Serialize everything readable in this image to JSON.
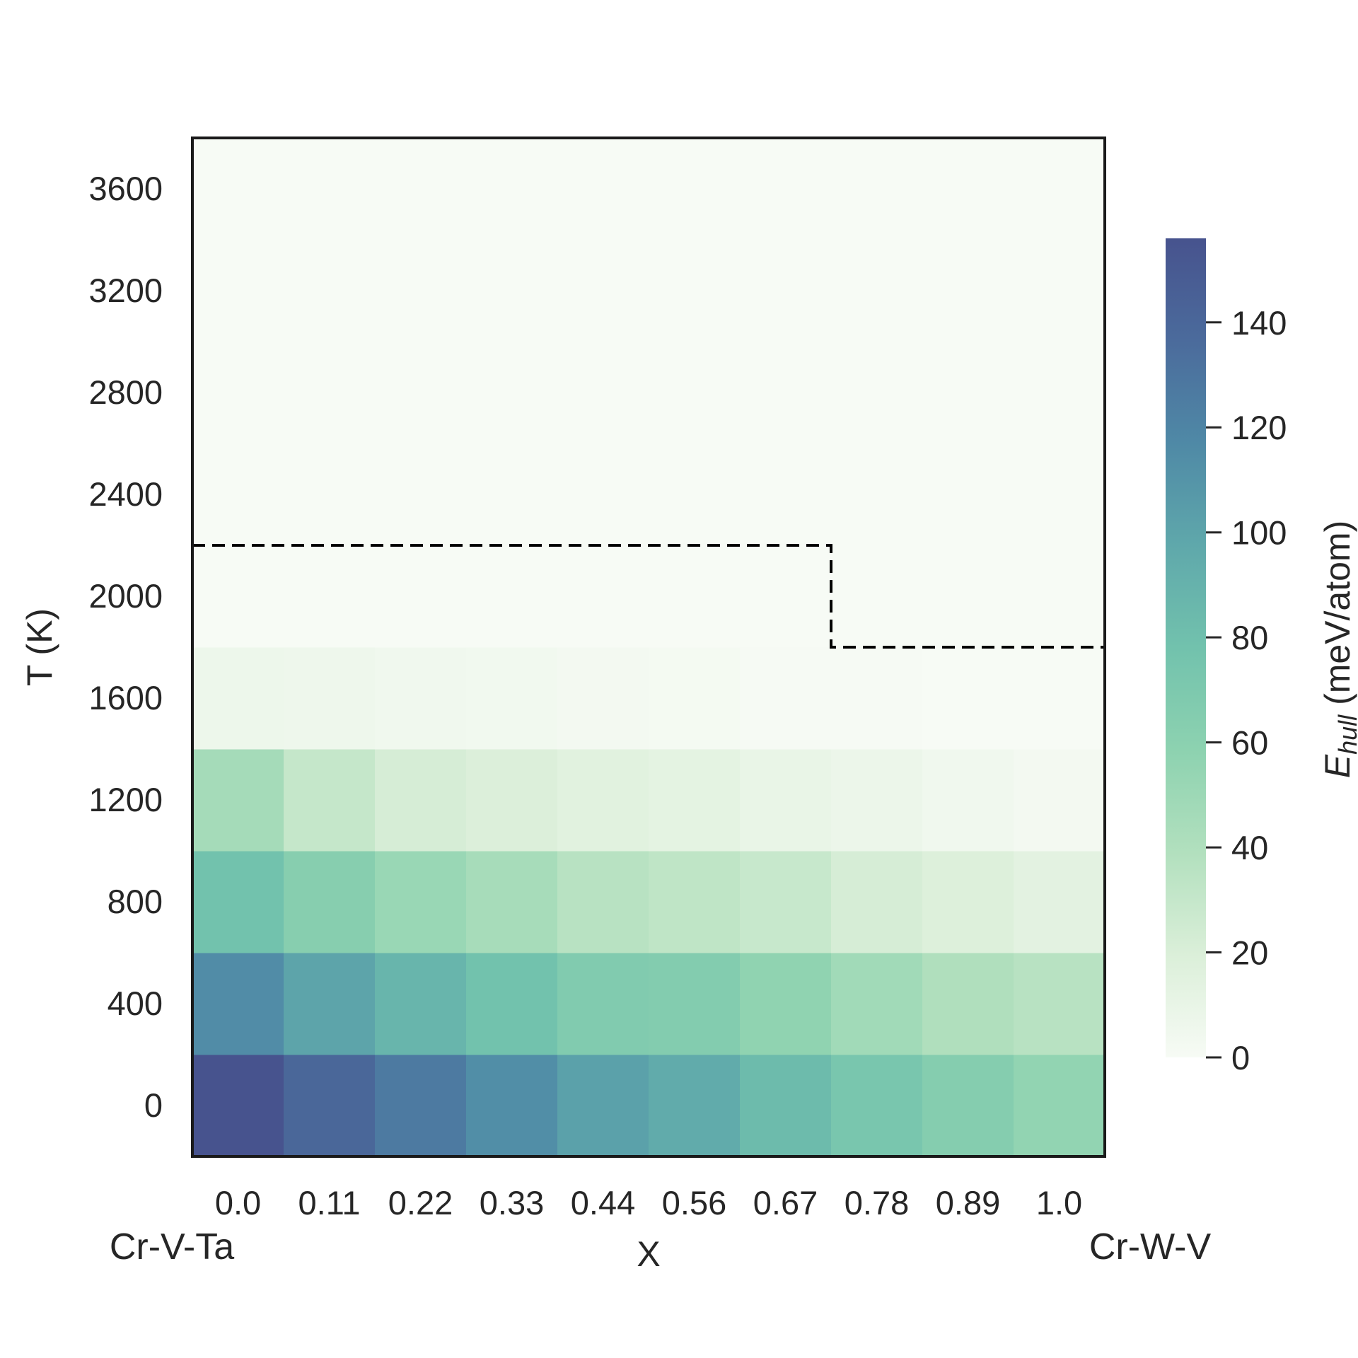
{
  "chart_data": {
    "type": "heatmap",
    "xlabel": "X",
    "ylabel": "T (K)",
    "x_categories": [
      "0.0",
      "0.11",
      "0.22",
      "0.33",
      "0.44",
      "0.56",
      "0.67",
      "0.78",
      "0.89",
      "1.0"
    ],
    "y_categories": [
      "0",
      "400",
      "800",
      "1200",
      "1600",
      "2000",
      "2400",
      "2800",
      "3200",
      "3600"
    ],
    "x_start_label": "Cr-V-Ta",
    "x_end_label": "Cr-W-V",
    "values": [
      [
        156,
        140,
        127,
        114,
        102,
        95,
        83,
        73,
        64,
        56
      ],
      [
        115,
        100,
        88,
        78,
        67,
        66,
        57,
        48,
        40,
        36
      ],
      [
        78,
        63,
        52,
        45,
        36,
        33,
        29,
        22,
        18,
        14
      ],
      [
        46,
        30,
        22,
        19,
        15,
        13,
        10,
        8,
        5,
        3
      ],
      [
        7,
        6,
        5,
        4,
        3,
        2,
        1,
        1,
        0,
        0
      ],
      [
        0,
        0,
        0,
        0,
        0,
        0,
        0,
        0,
        0,
        0
      ],
      [
        0,
        0,
        0,
        0,
        0,
        0,
        0,
        0,
        0,
        0
      ],
      [
        0,
        0,
        0,
        0,
        0,
        0,
        0,
        0,
        0,
        0
      ],
      [
        0,
        0,
        0,
        0,
        0,
        0,
        0,
        0,
        0,
        0
      ],
      [
        0,
        0,
        0,
        0,
        0,
        0,
        0,
        0,
        0,
        0
      ]
    ],
    "boundary": {
      "style": "dashed",
      "color": "#000000",
      "temperature_by_x": [
        2200,
        2200,
        2200,
        2200,
        2200,
        2200,
        2200,
        1800,
        1800,
        1800
      ]
    },
    "colorbar": {
      "label_main": "E",
      "label_sub": "hull",
      "label_unit": " (meV/atom)",
      "min": 0,
      "max": 156,
      "ticks": [
        0,
        20,
        40,
        60,
        80,
        100,
        120,
        140
      ],
      "colormap": [
        "#f7fbf5",
        "#dbefd9",
        "#b2e0be",
        "#8dd2b0",
        "#72c2ad",
        "#5fa8ab",
        "#4f89a6",
        "#4b6b9c",
        "#47538e"
      ]
    },
    "grid": false
  }
}
